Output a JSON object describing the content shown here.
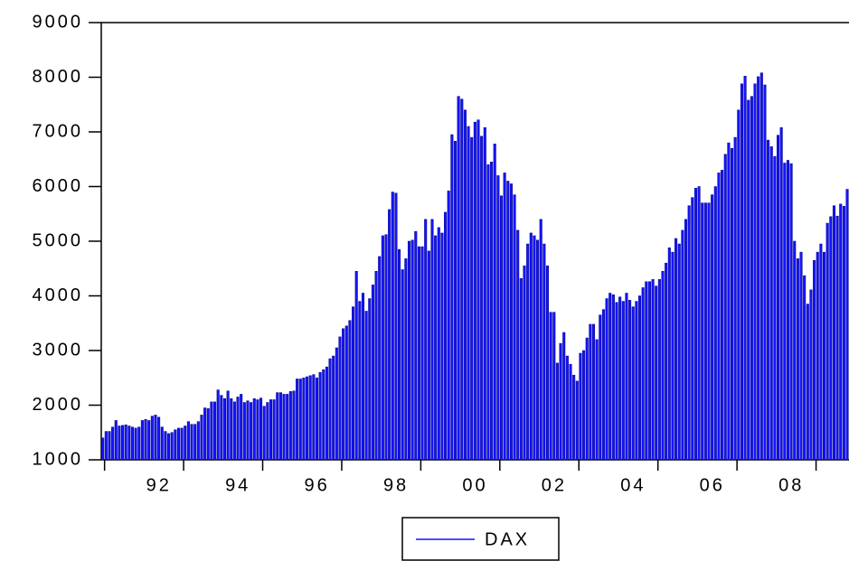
{
  "chart_data": {
    "type": "bar",
    "categories": [
      null,
      null,
      null,
      null,
      null,
      null,
      null,
      null,
      null,
      null,
      null,
      null,
      null,
      null,
      null,
      null,
      null,
      "92",
      null,
      null,
      null,
      null,
      null,
      null,
      null,
      null,
      null,
      null,
      null,
      null,
      null,
      null,
      null,
      null,
      null,
      null,
      null,
      null,
      null,
      null,
      null,
      "94",
      null,
      null,
      null,
      null,
      null,
      null,
      null,
      null,
      null,
      null,
      null,
      null,
      null,
      null,
      null,
      null,
      null,
      null,
      null,
      null,
      null,
      null,
      null,
      "96",
      null,
      null,
      null,
      null,
      null,
      null,
      null,
      null,
      null,
      null,
      null,
      null,
      null,
      null,
      null,
      null,
      null,
      null,
      null,
      null,
      null,
      null,
      null,
      "98",
      null,
      null,
      null,
      null,
      null,
      null,
      null,
      null,
      null,
      null,
      null,
      null,
      null,
      null,
      null,
      null,
      null,
      null,
      null,
      null,
      null,
      null,
      null,
      "00",
      null,
      null,
      null,
      null,
      null,
      null,
      null,
      null,
      null,
      null,
      null,
      null,
      null,
      null,
      null,
      null,
      null,
      null,
      null,
      null,
      null,
      null,
      null,
      "02",
      null,
      null,
      null,
      null,
      null,
      null,
      null,
      null,
      null,
      null,
      null,
      null,
      null,
      null,
      null,
      null,
      null,
      null,
      null,
      null,
      null,
      null,
      null,
      "04",
      null,
      null,
      null,
      null,
      null,
      null,
      null,
      null,
      null,
      null,
      null,
      null,
      null,
      null,
      null,
      null,
      null,
      null,
      null,
      null,
      null,
      null,
      null,
      "06",
      null,
      null,
      null,
      null,
      null,
      null,
      null,
      null,
      null,
      null,
      null,
      null,
      null,
      null,
      null,
      null,
      null,
      null,
      null,
      null,
      null,
      null,
      null,
      "08",
      null,
      null,
      null,
      null,
      null,
      null,
      null,
      null,
      null,
      null,
      null,
      null,
      null,
      null,
      null,
      null,
      null
    ],
    "series": [
      {
        "name": "DAX",
        "color": "#1414ff",
        "values": [
          1400,
          1520,
          1520,
          1600,
          1720,
          1620,
          1630,
          1640,
          1620,
          1600,
          1580,
          1600,
          1720,
          1740,
          1720,
          1800,
          1820,
          1780,
          1600,
          1520,
          1480,
          1500,
          1550,
          1580,
          1580,
          1620,
          1700,
          1650,
          1650,
          1700,
          1820,
          1950,
          1940,
          2060,
          2060,
          2280,
          2180,
          2120,
          2260,
          2120,
          2060,
          2150,
          2200,
          2050,
          2080,
          2050,
          2120,
          2100,
          2130,
          1980,
          2050,
          2100,
          2100,
          2230,
          2230,
          2200,
          2200,
          2250,
          2260,
          2480,
          2480,
          2500,
          2520,
          2540,
          2560,
          2500,
          2600,
          2650,
          2700,
          2850,
          2900,
          3050,
          3250,
          3400,
          3450,
          3550,
          3800,
          4450,
          3900,
          4050,
          3720,
          3950,
          4200,
          4450,
          4720,
          5100,
          5120,
          5580,
          5900,
          5880,
          4850,
          4480,
          4680,
          5000,
          5020,
          5180,
          4900,
          4900,
          5400,
          4820,
          5400,
          5100,
          5250,
          5150,
          5530,
          5920,
          6950,
          6830,
          7650,
          7600,
          7400,
          7100,
          6900,
          7180,
          7220,
          6920,
          7080,
          6400,
          6450,
          6780,
          6200,
          5830,
          6250,
          6100,
          6050,
          5850,
          5200,
          4320,
          4550,
          4950,
          5150,
          5100,
          5020,
          5400,
          4950,
          4550,
          3700,
          3700,
          2770,
          3130,
          3330,
          2900,
          2750,
          2550,
          2440,
          2950,
          3000,
          3230,
          3480,
          3480,
          3200,
          3650,
          3750,
          3950,
          4050,
          4020,
          3880,
          3980,
          3900,
          4050,
          3920,
          3800,
          3900,
          4000,
          4150,
          4260,
          4260,
          4300,
          4180,
          4300,
          4450,
          4600,
          4880,
          4800,
          5050,
          4950,
          5200,
          5400,
          5650,
          5800,
          5970,
          6000,
          5700,
          5700,
          5700,
          5850,
          6000,
          6250,
          6300,
          6590,
          6800,
          6700,
          6900,
          7400,
          7880,
          8020,
          7580,
          7650,
          7880,
          8010,
          8080,
          7860,
          6850,
          6730,
          6550,
          6940,
          7080,
          6430,
          6480,
          6420,
          5000,
          4680,
          4800,
          4370,
          3850,
          4110,
          4650,
          4800,
          4950,
          4800,
          5330,
          5450,
          5650,
          5460,
          5680,
          5640,
          5950
        ]
      }
    ],
    "ylim": [
      1000,
      9000
    ],
    "yticks": [
      1000,
      2000,
      3000,
      4000,
      5000,
      6000,
      7000,
      8000,
      9000
    ],
    "legend": "bottom"
  }
}
